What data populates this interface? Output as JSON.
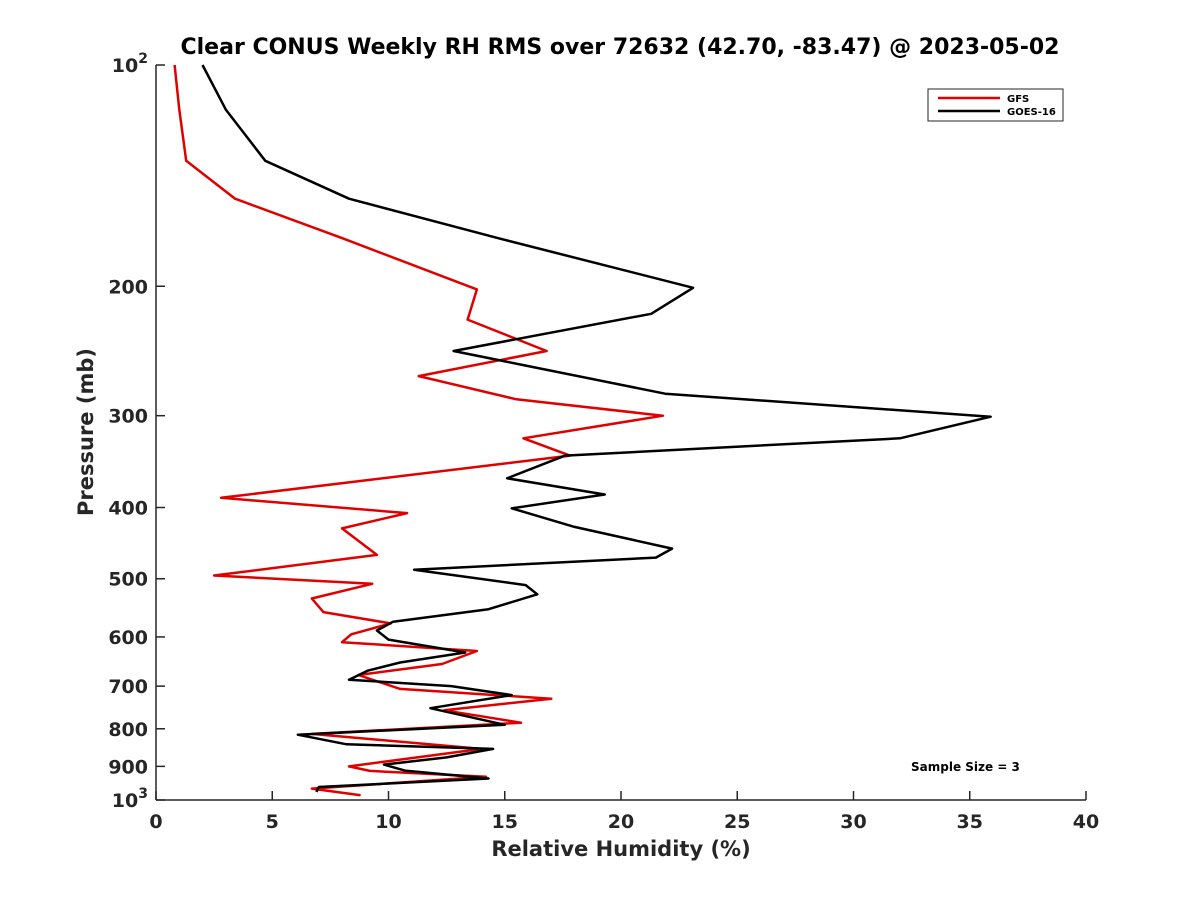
{
  "chart_data": {
    "type": "line",
    "title": "Clear CONUS Weekly RH RMS over 72632 (42.70, -83.47) @ 2023-05-02",
    "xlabel": "Relative Humidity (%)",
    "ylabel": "Pressure (mb)",
    "xlim": [
      0,
      40
    ],
    "ylim": [
      100,
      1000
    ],
    "yscale": "log",
    "y_reversed": true,
    "grid": false,
    "legend_position": "top-right",
    "x_ticks": [
      "0",
      "5",
      "10",
      "15",
      "20",
      "25",
      "30",
      "35",
      "40"
    ],
    "x_tick_values": [
      0,
      5,
      10,
      15,
      20,
      25,
      30,
      35,
      40
    ],
    "y_tick_values": [
      100,
      200,
      300,
      400,
      500,
      600,
      700,
      800,
      900,
      1000
    ],
    "y_tick_labels": [
      {
        "base": "10",
        "exp": "2"
      },
      {
        "base": "200",
        "exp": ""
      },
      {
        "base": "300",
        "exp": ""
      },
      {
        "base": "400",
        "exp": ""
      },
      {
        "base": "500",
        "exp": ""
      },
      {
        "base": "600",
        "exp": ""
      },
      {
        "base": "700",
        "exp": ""
      },
      {
        "base": "800",
        "exp": ""
      },
      {
        "base": "900",
        "exp": ""
      },
      {
        "base": "10",
        "exp": "3"
      }
    ],
    "annotation": "Sample Size = 3",
    "series": [
      {
        "name": "GFS",
        "color": "#e00000",
        "points": [
          [
            0.8,
            100
          ],
          [
            1.0,
            115
          ],
          [
            1.3,
            135
          ],
          [
            3.4,
            152
          ],
          [
            8.0,
            172
          ],
          [
            13.8,
            202
          ],
          [
            13.4,
            222
          ],
          [
            16.8,
            245
          ],
          [
            11.3,
            265
          ],
          [
            15.5,
            285
          ],
          [
            21.8,
            300
          ],
          [
            15.8,
            322
          ],
          [
            17.8,
            340
          ],
          [
            2.8,
            388
          ],
          [
            10.8,
            407
          ],
          [
            8.0,
            427
          ],
          [
            9.5,
            464
          ],
          [
            2.5,
            495
          ],
          [
            9.3,
            508
          ],
          [
            6.7,
            532
          ],
          [
            7.2,
            555
          ],
          [
            10.1,
            575
          ],
          [
            8.4,
            595
          ],
          [
            8.0,
            610
          ],
          [
            13.8,
            627
          ],
          [
            12.3,
            653
          ],
          [
            8.7,
            676
          ],
          [
            10.5,
            706
          ],
          [
            17.0,
            728
          ],
          [
            12.4,
            755
          ],
          [
            15.7,
            785
          ],
          [
            6.7,
            813
          ],
          [
            14.0,
            852
          ],
          [
            8.3,
            900
          ],
          [
            9.2,
            913
          ],
          [
            14.2,
            930
          ],
          [
            6.7,
            965
          ],
          [
            8.8,
            985
          ]
        ]
      },
      {
        "name": "GOES-16",
        "color": "#000000",
        "points": [
          [
            2.0,
            100
          ],
          [
            3.0,
            115
          ],
          [
            4.7,
            135
          ],
          [
            8.3,
            152
          ],
          [
            14.7,
            172
          ],
          [
            23.1,
            201
          ],
          [
            21.3,
            218
          ],
          [
            12.8,
            245
          ],
          [
            15.8,
            256
          ],
          [
            21.9,
            280
          ],
          [
            35.9,
            301
          ],
          [
            32.0,
            322
          ],
          [
            17.6,
            340
          ],
          [
            15.1,
            365
          ],
          [
            19.3,
            384
          ],
          [
            15.3,
            401
          ],
          [
            18.0,
            425
          ],
          [
            22.2,
            455
          ],
          [
            21.5,
            468
          ],
          [
            11.1,
            486
          ],
          [
            15.9,
            510
          ],
          [
            16.4,
            525
          ],
          [
            14.3,
            550
          ],
          [
            10.2,
            572
          ],
          [
            9.5,
            588
          ],
          [
            10.0,
            605
          ],
          [
            13.3,
            630
          ],
          [
            10.5,
            650
          ],
          [
            9.1,
            667
          ],
          [
            8.3,
            686
          ],
          [
            12.7,
            700
          ],
          [
            15.3,
            720
          ],
          [
            11.8,
            750
          ],
          [
            15.0,
            790
          ],
          [
            6.1,
            815
          ],
          [
            8.2,
            840
          ],
          [
            14.5,
            852
          ],
          [
            12.5,
            875
          ],
          [
            9.8,
            895
          ],
          [
            10.7,
            912
          ],
          [
            14.3,
            935
          ],
          [
            7.0,
            960
          ],
          [
            6.9,
            975
          ]
        ]
      }
    ]
  }
}
